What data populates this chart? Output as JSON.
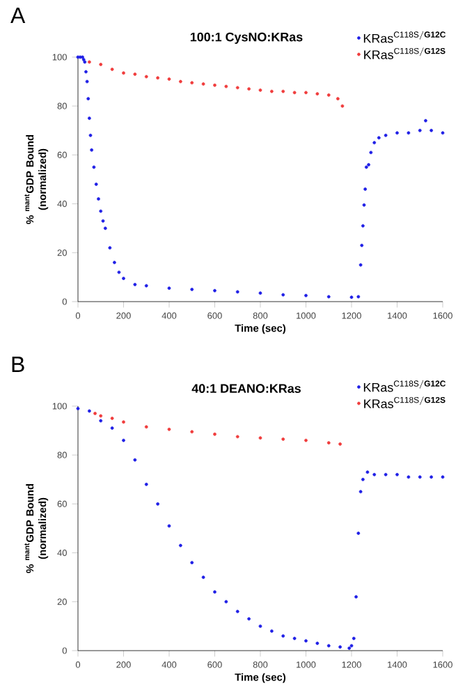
{
  "chart_data": [
    {
      "type": "scatter",
      "title": "100:1 CysNO:KRas",
      "xlabel": "Time (sec)",
      "ylabel": "% $^{mant}$GDP Bound (normalized)",
      "annotations": [
        "A"
      ],
      "xlim": [
        0,
        1600
      ],
      "ylim": [
        0,
        100
      ],
      "xticks": [
        0,
        200,
        400,
        600,
        800,
        1000,
        1200,
        1400,
        1600
      ],
      "yticks": [
        0,
        20,
        40,
        60,
        80,
        100
      ],
      "legend": "top right",
      "marker": "circle",
      "grid": false,
      "series": [
        {
          "name": "\\mathrm{KRas}^{\\mathrm{C118S/}\\mathbf{G12C}}",
          "color": "#1f1fe6",
          "x": [
            0,
            10,
            20,
            25,
            30,
            35,
            40,
            45,
            50,
            55,
            60,
            70,
            80,
            90,
            100,
            110,
            120,
            140,
            160,
            180,
            200,
            250,
            300,
            400,
            500,
            600,
            700,
            800,
            900,
            1000,
            1100,
            1200,
            1230,
            1240,
            1245,
            1250,
            1255,
            1260,
            1265,
            1275,
            1285,
            1300,
            1320,
            1350,
            1400,
            1450,
            1500,
            1525,
            1550,
            1600
          ],
          "values": [
            100,
            100,
            100,
            99,
            98,
            94,
            90,
            83,
            75,
            68,
            62,
            55,
            48,
            42,
            37,
            33,
            30,
            22,
            16,
            12,
            9.5,
            7,
            6.5,
            5.5,
            5,
            4.5,
            4,
            3.5,
            2.8,
            2.5,
            2,
            1.8,
            2,
            15,
            23,
            31,
            39.5,
            46,
            55,
            56,
            61,
            65,
            67,
            68,
            69,
            69,
            70,
            74,
            70,
            69
          ]
        },
        {
          "name": "\\mathrm{KRas}^{\\mathrm{C118S/}\\mathbf{G12S}}",
          "color": "#f03c3c",
          "x": [
            50,
            100,
            150,
            200,
            250,
            300,
            350,
            400,
            450,
            500,
            550,
            600,
            650,
            700,
            750,
            800,
            850,
            900,
            950,
            1000,
            1050,
            1100,
            1140,
            1160
          ],
          "values": [
            98,
            97,
            95,
            93.5,
            93,
            92,
            91.5,
            91,
            90,
            89.5,
            89,
            88.5,
            88,
            87.5,
            87,
            86.5,
            86,
            86,
            85.5,
            85.5,
            85,
            84.5,
            83,
            80
          ]
        }
      ]
    },
    {
      "type": "scatter",
      "title": "40:1 DEANO:KRas",
      "xlabel": "Time (sec)",
      "ylabel": "% $^{mant}$GDP Bound (normalized)",
      "annotations": [
        "B"
      ],
      "xlim": [
        0,
        1600
      ],
      "ylim": [
        0,
        100
      ],
      "xticks": [
        0,
        200,
        400,
        600,
        800,
        1000,
        1200,
        1400,
        1600
      ],
      "yticks": [
        0,
        20,
        40,
        60,
        80,
        100
      ],
      "legend": "top right",
      "marker": "circle",
      "grid": false,
      "series": [
        {
          "name": "\\mathrm{KRas}^{\\mathrm{C118S/}\\mathbf{G12C}}",
          "color": "#1f1fe6",
          "x": [
            0,
            50,
            100,
            150,
            200,
            250,
            300,
            350,
            400,
            450,
            500,
            550,
            600,
            650,
            700,
            750,
            800,
            850,
            900,
            950,
            1000,
            1050,
            1100,
            1150,
            1190,
            1200,
            1210,
            1220,
            1230,
            1240,
            1250,
            1270,
            1300,
            1350,
            1400,
            1450,
            1500,
            1550,
            1600
          ],
          "values": [
            99,
            98,
            94,
            91,
            86,
            78,
            68,
            60,
            51,
            43,
            36,
            30,
            24,
            20,
            16,
            13,
            10,
            8,
            6,
            5,
            4,
            3,
            2,
            1.5,
            1,
            2,
            5,
            22,
            48,
            65,
            70,
            73,
            72,
            72,
            72,
            71,
            71,
            71,
            71
          ]
        },
        {
          "name": "\\mathrm{KRas}^{\\mathrm{C118S/}\\mathbf{G12S}}",
          "color": "#f03c3c",
          "x": [
            75,
            100,
            150,
            200,
            300,
            400,
            500,
            600,
            700,
            800,
            900,
            1000,
            1100,
            1150
          ],
          "values": [
            97,
            96,
            95,
            93.5,
            91.5,
            90.5,
            89.5,
            88.5,
            87.5,
            87,
            86.5,
            86,
            85,
            84.5
          ]
        }
      ]
    }
  ]
}
